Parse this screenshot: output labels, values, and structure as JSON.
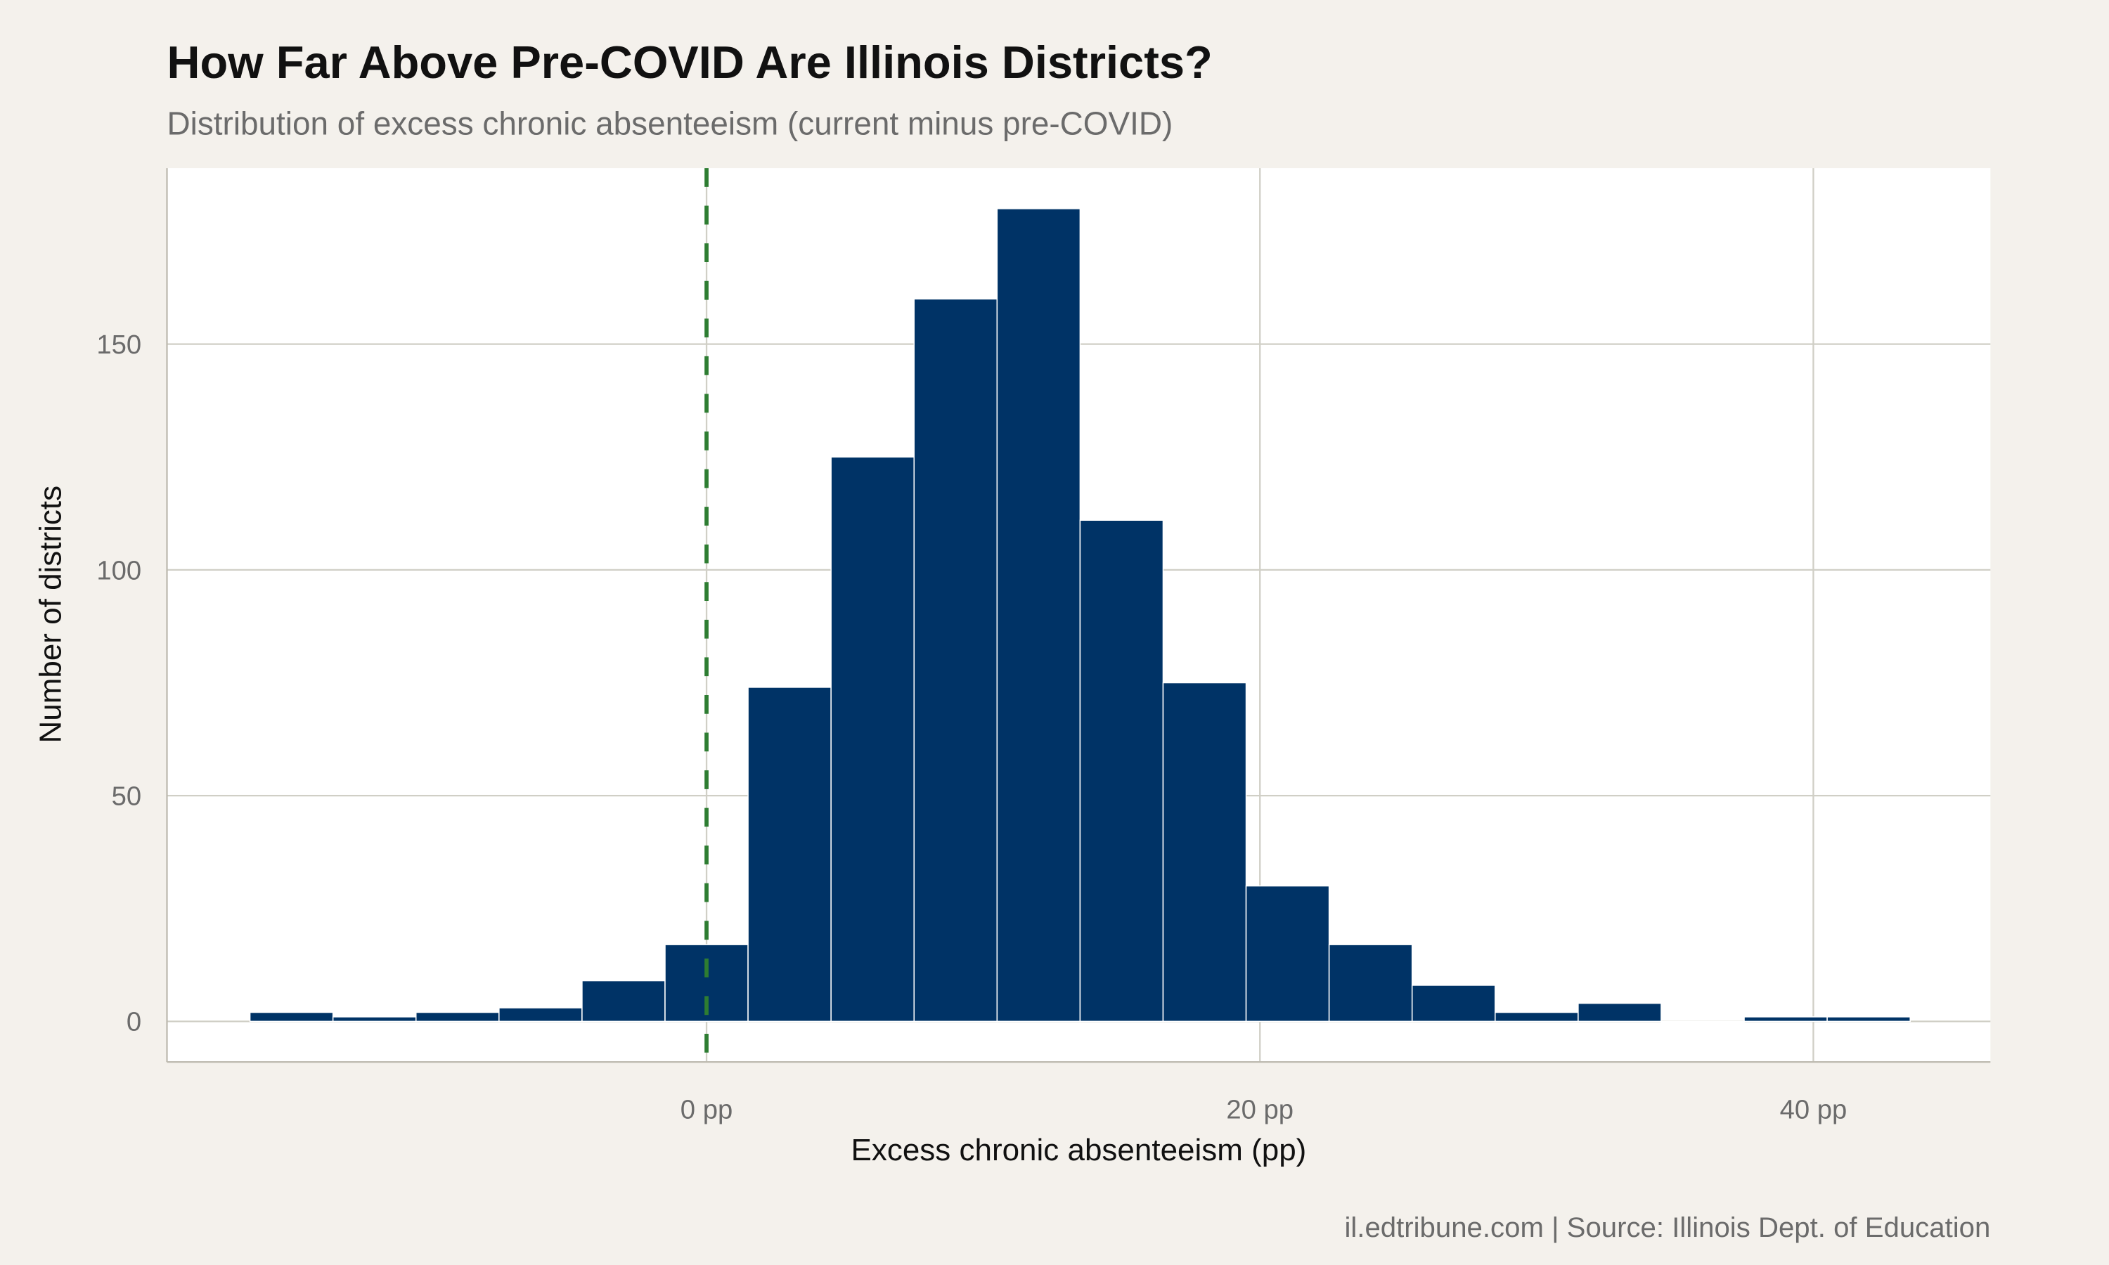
{
  "chart_data": {
    "type": "bar",
    "title": "How Far Above Pre-COVID Are Illinois Districts?",
    "subtitle": "Distribution of excess chronic absenteeism (current minus pre-COVID)",
    "xlabel": "Excess chronic absenteeism (pp)",
    "ylabel": "Number of districts",
    "caption": "il.edtribune.com | Source: Illinois Dept. of Education",
    "bin_width": 3,
    "bin_centers": [
      -15,
      -12,
      -9,
      -6,
      -3,
      0,
      3,
      6,
      9,
      12,
      15,
      18,
      21,
      24,
      27,
      30,
      33,
      36,
      39,
      42
    ],
    "values": [
      2,
      1,
      2,
      3,
      9,
      17,
      74,
      125,
      160,
      180,
      111,
      75,
      30,
      17,
      8,
      2,
      4,
      0,
      1,
      1
    ],
    "xlim": [
      -19.5,
      46.4
    ],
    "ylim": [
      -9,
      189
    ],
    "x_ticks": [
      {
        "value": 0,
        "label": "0 pp"
      },
      {
        "value": 20,
        "label": "20 pp"
      },
      {
        "value": 40,
        "label": "40 pp"
      }
    ],
    "y_ticks": [
      {
        "value": 0,
        "label": "0"
      },
      {
        "value": 50,
        "label": "50"
      },
      {
        "value": 100,
        "label": "100"
      },
      {
        "value": 150,
        "label": "150"
      }
    ],
    "reference_line": {
      "x": 0,
      "style": "dashed",
      "color": "#2e7d32"
    },
    "grid": true,
    "colors": {
      "bar": "#003366",
      "bar_outline": "#ffffff",
      "background": "#f4f1ec",
      "panel": "#ffffff",
      "grid": "#d0cfc6"
    }
  }
}
